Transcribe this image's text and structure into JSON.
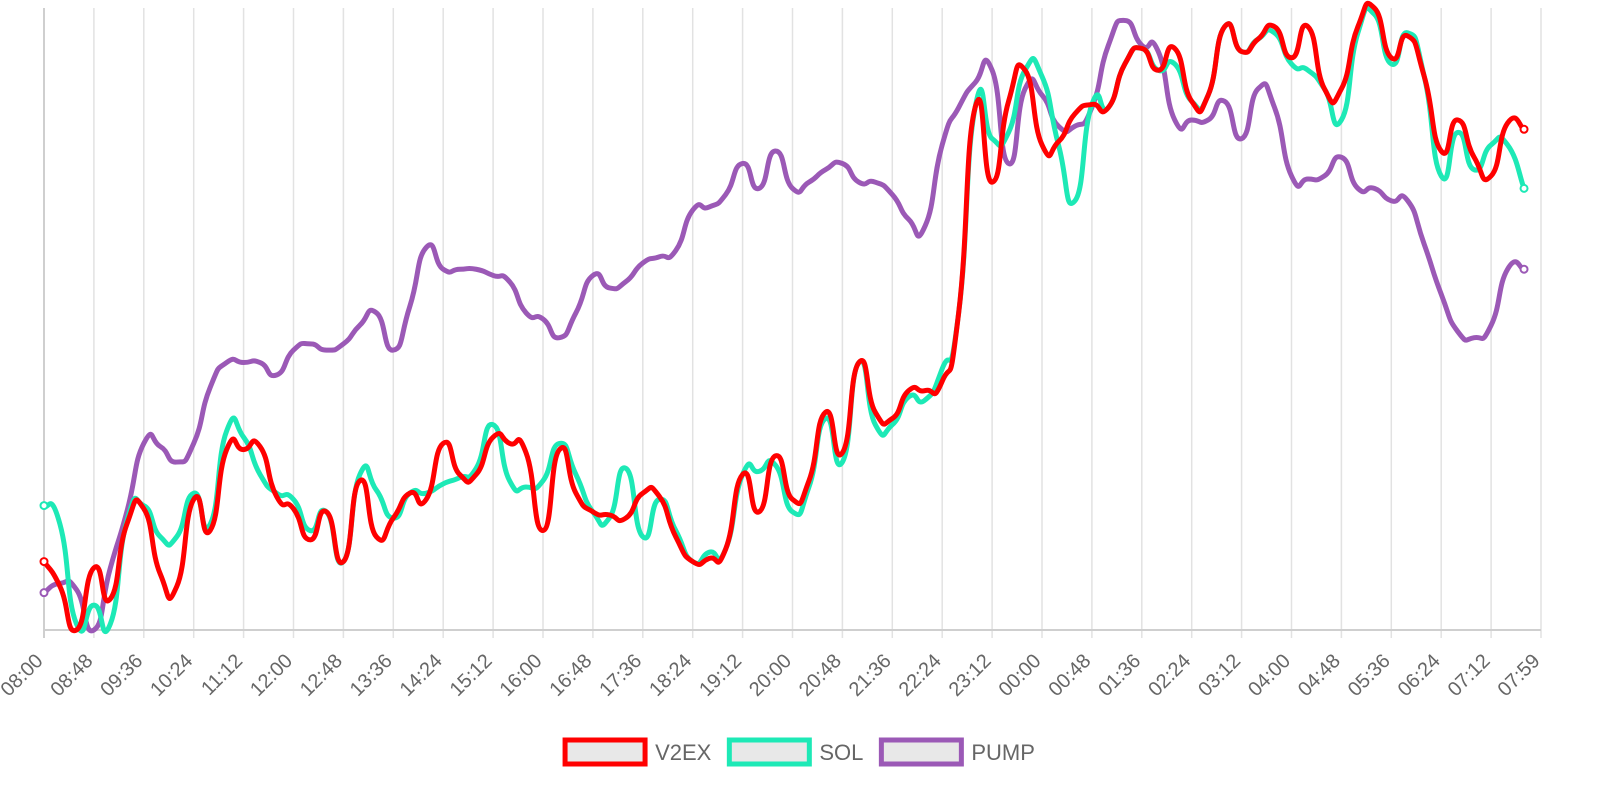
{
  "chart_data": {
    "type": "line",
    "title": "",
    "xlabel": "",
    "ylabel": "",
    "grid": "vertical",
    "legend_position": "bottom",
    "x": [
      "08:00",
      "08:48",
      "09:36",
      "10:24",
      "11:12",
      "12:00",
      "12:48",
      "13:36",
      "14:24",
      "15:12",
      "16:00",
      "16:48",
      "17:36",
      "18:24",
      "19:12",
      "20:00",
      "20:48",
      "21:36",
      "22:24",
      "23:12",
      "00:00",
      "00:48",
      "01:36",
      "02:24",
      "03:12",
      "04:00",
      "04:48",
      "05:36",
      "06:24",
      "07:12",
      "07:59"
    ],
    "ylim": [
      0,
      100
    ],
    "series": [
      {
        "name": "V2EX",
        "color": "#ff0000",
        "values": [
          [
            0,
            11
          ],
          [
            0.32,
            7
          ],
          [
            0.65,
            0
          ],
          [
            1,
            10
          ],
          [
            1.33,
            5
          ],
          [
            1.66,
            17
          ],
          [
            2,
            19.5
          ],
          [
            2.33,
            9
          ],
          [
            2.66,
            7
          ],
          [
            3,
            21
          ],
          [
            3.33,
            16
          ],
          [
            3.66,
            29
          ],
          [
            4,
            29
          ],
          [
            4.33,
            29.5
          ],
          [
            4.66,
            21.5
          ],
          [
            5,
            19.5
          ],
          [
            5.33,
            14.5
          ],
          [
            5.66,
            19
          ],
          [
            6,
            11
          ],
          [
            6.33,
            24
          ],
          [
            6.66,
            15
          ],
          [
            7,
            18
          ],
          [
            7.33,
            22
          ],
          [
            7.66,
            21
          ],
          [
            8,
            30
          ],
          [
            8.33,
            25
          ],
          [
            8.66,
            25
          ],
          [
            9,
            31
          ],
          [
            9.33,
            30
          ],
          [
            9.66,
            28.5
          ],
          [
            10,
            16
          ],
          [
            10.33,
            29
          ],
          [
            10.66,
            22
          ],
          [
            11,
            19
          ],
          [
            11.33,
            18.5
          ],
          [
            11.66,
            18
          ],
          [
            12,
            22
          ],
          [
            12.33,
            21.5
          ],
          [
            12.66,
            15
          ],
          [
            13,
            11
          ],
          [
            13.33,
            11.5
          ],
          [
            13.66,
            13
          ],
          [
            14,
            25
          ],
          [
            14.33,
            19
          ],
          [
            14.66,
            28
          ],
          [
            15,
            21
          ],
          [
            15.33,
            24
          ],
          [
            15.66,
            35
          ],
          [
            16,
            28.5
          ],
          [
            16.33,
            43
          ],
          [
            16.66,
            35
          ],
          [
            17,
            34
          ],
          [
            17.33,
            38.5
          ],
          [
            17.66,
            38.5
          ],
          [
            18,
            40
          ],
          [
            18.33,
            51
          ],
          [
            18.66,
            84
          ],
          [
            19,
            72
          ],
          [
            19.33,
            85
          ],
          [
            19.66,
            90
          ],
          [
            20,
            78
          ],
          [
            20.33,
            78.5
          ],
          [
            20.66,
            83
          ],
          [
            21,
            84.5
          ],
          [
            21.33,
            84
          ],
          [
            21.66,
            91
          ],
          [
            22,
            93.5
          ],
          [
            22.33,
            90
          ],
          [
            22.66,
            93.5
          ],
          [
            23,
            85
          ],
          [
            23.33,
            86
          ],
          [
            23.66,
            97
          ],
          [
            24,
            93
          ],
          [
            24.33,
            95
          ],
          [
            24.66,
            97
          ],
          [
            25,
            92
          ],
          [
            25.33,
            97
          ],
          [
            25.66,
            87
          ],
          [
            26,
            87
          ],
          [
            26.33,
            97
          ],
          [
            26.66,
            100
          ],
          [
            27,
            92
          ],
          [
            27.33,
            95.5
          ],
          [
            27.66,
            89
          ],
          [
            28,
            77
          ],
          [
            28.33,
            82
          ],
          [
            28.66,
            76
          ],
          [
            29,
            73
          ],
          [
            29.33,
            81.5
          ],
          [
            29.66,
            80.5
          ]
        ]
      },
      {
        "name": "SOL",
        "color": "#1de9b6",
        "values": [
          [
            0,
            20
          ],
          [
            0.32,
            17
          ],
          [
            0.65,
            1
          ],
          [
            1,
            4
          ],
          [
            1.33,
            1
          ],
          [
            1.66,
            17.5
          ],
          [
            2,
            20
          ],
          [
            2.33,
            15
          ],
          [
            2.66,
            15
          ],
          [
            3,
            22
          ],
          [
            3.33,
            17
          ],
          [
            3.66,
            32
          ],
          [
            4,
            31
          ],
          [
            4.33,
            25
          ],
          [
            4.66,
            22
          ],
          [
            5,
            21
          ],
          [
            5.33,
            16
          ],
          [
            5.66,
            19
          ],
          [
            6,
            11
          ],
          [
            6.33,
            25
          ],
          [
            6.66,
            22.5
          ],
          [
            7,
            18
          ],
          [
            7.33,
            22
          ],
          [
            7.66,
            22
          ],
          [
            8,
            23.5
          ],
          [
            8.33,
            24.5
          ],
          [
            8.66,
            26
          ],
          [
            9,
            33
          ],
          [
            9.33,
            24
          ],
          [
            9.66,
            23
          ],
          [
            10,
            24
          ],
          [
            10.33,
            30
          ],
          [
            10.66,
            25
          ],
          [
            11,
            19
          ],
          [
            11.33,
            18
          ],
          [
            11.66,
            26
          ],
          [
            12,
            15
          ],
          [
            12.33,
            21
          ],
          [
            12.66,
            16
          ],
          [
            13,
            11
          ],
          [
            13.33,
            12.5
          ],
          [
            13.66,
            13
          ],
          [
            14,
            25
          ],
          [
            14.33,
            25.5
          ],
          [
            14.66,
            26.5
          ],
          [
            15,
            19
          ],
          [
            15.33,
            23
          ],
          [
            15.66,
            34
          ],
          [
            16,
            27
          ],
          [
            16.33,
            43
          ],
          [
            16.66,
            33
          ],
          [
            17,
            33
          ],
          [
            17.33,
            37.5
          ],
          [
            17.66,
            37
          ],
          [
            18,
            42
          ],
          [
            18.33,
            51
          ],
          [
            18.66,
            84
          ],
          [
            19,
            79
          ],
          [
            19.33,
            80
          ],
          [
            19.66,
            90
          ],
          [
            20,
            89
          ],
          [
            20.33,
            78
          ],
          [
            20.66,
            69
          ],
          [
            21,
            84.5
          ],
          [
            21.33,
            84
          ],
          [
            21.66,
            91
          ],
          [
            22,
            93.5
          ],
          [
            22.33,
            90
          ],
          [
            22.66,
            91
          ],
          [
            23,
            85
          ],
          [
            23.33,
            86
          ],
          [
            23.66,
            97
          ],
          [
            24,
            93
          ],
          [
            24.33,
            95
          ],
          [
            24.66,
            96
          ],
          [
            25,
            91
          ],
          [
            25.33,
            90
          ],
          [
            25.66,
            87
          ],
          [
            26,
            82
          ],
          [
            26.33,
            96
          ],
          [
            26.66,
            99
          ],
          [
            27,
            91
          ],
          [
            27.33,
            96
          ],
          [
            27.66,
            89
          ],
          [
            28,
            73
          ],
          [
            28.33,
            80
          ],
          [
            28.66,
            74
          ],
          [
            29,
            78
          ],
          [
            29.33,
            78
          ],
          [
            29.66,
            71
          ]
        ]
      },
      {
        "name": "PUMP",
        "color": "#9b59b6",
        "values": [
          [
            0,
            6
          ],
          [
            0.32,
            7.5
          ],
          [
            0.65,
            6.5
          ],
          [
            1,
            0
          ],
          [
            1.33,
            10
          ],
          [
            1.66,
            19
          ],
          [
            2,
            30
          ],
          [
            2.33,
            29.5
          ],
          [
            2.66,
            27
          ],
          [
            3,
            30
          ],
          [
            3.33,
            39
          ],
          [
            3.66,
            43
          ],
          [
            4,
            43
          ],
          [
            4.33,
            43
          ],
          [
            4.66,
            41
          ],
          [
            5,
            45
          ],
          [
            5.33,
            46
          ],
          [
            5.66,
            45
          ],
          [
            6,
            46
          ],
          [
            6.33,
            49
          ],
          [
            6.66,
            51
          ],
          [
            7,
            45
          ],
          [
            7.33,
            52
          ],
          [
            7.66,
            61.5
          ],
          [
            8,
            58
          ],
          [
            8.33,
            58
          ],
          [
            8.66,
            58
          ],
          [
            9,
            57
          ],
          [
            9.33,
            56
          ],
          [
            9.66,
            51
          ],
          [
            10,
            50
          ],
          [
            10.33,
            47
          ],
          [
            10.66,
            51
          ],
          [
            11,
            57
          ],
          [
            11.33,
            55
          ],
          [
            11.66,
            56
          ],
          [
            12,
            59
          ],
          [
            12.33,
            60
          ],
          [
            12.66,
            61
          ],
          [
            13,
            67.5
          ],
          [
            13.33,
            68
          ],
          [
            13.66,
            70
          ],
          [
            14,
            75
          ],
          [
            14.33,
            71
          ],
          [
            14.66,
            77
          ],
          [
            15,
            71
          ],
          [
            15.33,
            72
          ],
          [
            15.66,
            74
          ],
          [
            16,
            75
          ],
          [
            16.33,
            72
          ],
          [
            16.66,
            72
          ],
          [
            17,
            70
          ],
          [
            17.33,
            66
          ],
          [
            17.66,
            65
          ],
          [
            18,
            78
          ],
          [
            18.33,
            84
          ],
          [
            18.66,
            88
          ],
          [
            19,
            90
          ],
          [
            19.33,
            75
          ],
          [
            19.66,
            87
          ],
          [
            20,
            86
          ],
          [
            20.33,
            81
          ],
          [
            20.66,
            81
          ],
          [
            21,
            84
          ],
          [
            21.33,
            94
          ],
          [
            21.66,
            98
          ],
          [
            22,
            94
          ],
          [
            22.33,
            93
          ],
          [
            22.66,
            82
          ],
          [
            23,
            82
          ],
          [
            23.33,
            82
          ],
          [
            23.66,
            85
          ],
          [
            24,
            79
          ],
          [
            24.33,
            87
          ],
          [
            24.66,
            84
          ],
          [
            25,
            73
          ],
          [
            25.33,
            72.5
          ],
          [
            25.66,
            73
          ],
          [
            26,
            76
          ],
          [
            26.33,
            71
          ],
          [
            26.66,
            71
          ],
          [
            27,
            69
          ],
          [
            27.33,
            69
          ],
          [
            27.66,
            62
          ],
          [
            28,
            54
          ],
          [
            28.33,
            48
          ],
          [
            28.66,
            47
          ],
          [
            29,
            49
          ],
          [
            29.33,
            58
          ],
          [
            29.66,
            58
          ]
        ]
      }
    ],
    "legend": [
      {
        "label": "V2EX",
        "color": "#ff0000"
      },
      {
        "label": "SOL",
        "color": "#1de9b6"
      },
      {
        "label": "PUMP",
        "color": "#9b59b6"
      }
    ]
  }
}
